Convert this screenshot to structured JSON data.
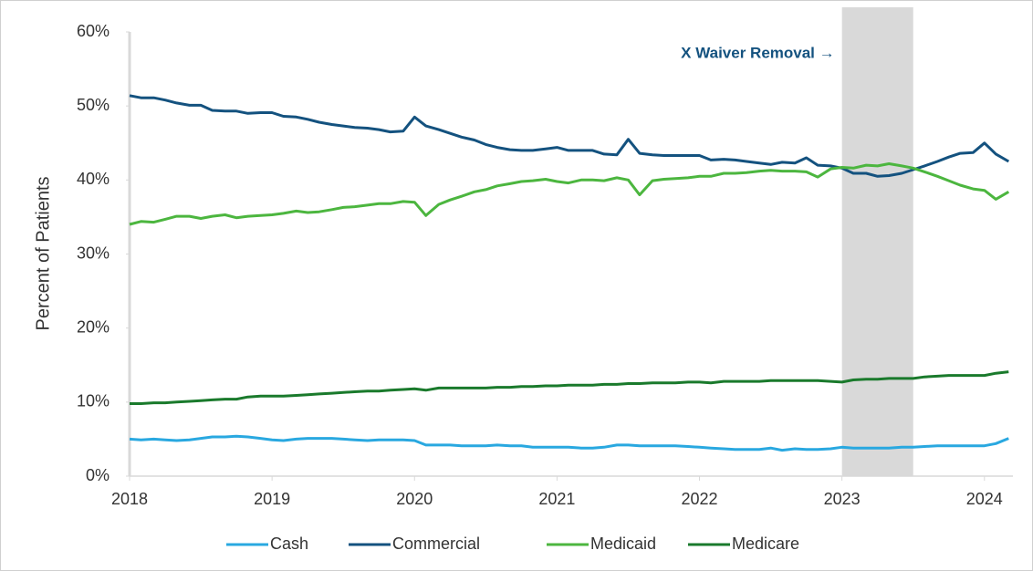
{
  "chart_data": {
    "type": "line",
    "y_axis_label": "Percent of Patients",
    "annotation": "X Waiver Removal →",
    "shaded_region": [
      2023,
      2023.5
    ],
    "xlim": [
      2018,
      2024.2
    ],
    "xticks": [
      2018,
      2019,
      2020,
      2021,
      2022,
      2023,
      2024
    ],
    "ylim": [
      0,
      60
    ],
    "yticks": [
      {
        "value": 0,
        "label": "0%"
      },
      {
        "value": 10,
        "label": "10%"
      },
      {
        "value": 20,
        "label": "20%"
      },
      {
        "value": 30,
        "label": "30%"
      },
      {
        "value": 40,
        "label": "40%"
      },
      {
        "value": 50,
        "label": "50%"
      },
      {
        "value": 60,
        "label": "60%"
      }
    ],
    "legend": "bottom",
    "x": [
      2018,
      2018.08,
      2018.17,
      2018.25,
      2018.33,
      2018.42,
      2018.5,
      2018.58,
      2018.67,
      2018.75,
      2018.83,
      2018.92,
      2019,
      2019.08,
      2019.17,
      2019.25,
      2019.33,
      2019.42,
      2019.5,
      2019.58,
      2019.67,
      2019.75,
      2019.83,
      2019.92,
      2020,
      2020.08,
      2020.17,
      2020.25,
      2020.33,
      2020.42,
      2020.5,
      2020.58,
      2020.67,
      2020.75,
      2020.83,
      2020.92,
      2021,
      2021.08,
      2021.17,
      2021.25,
      2021.33,
      2021.42,
      2021.5,
      2021.58,
      2021.67,
      2021.75,
      2021.83,
      2021.92,
      2022,
      2022.08,
      2022.17,
      2022.25,
      2022.33,
      2022.42,
      2022.5,
      2022.58,
      2022.67,
      2022.75,
      2022.83,
      2022.92,
      2023,
      2023.08,
      2023.17,
      2023.25,
      2023.33,
      2023.42,
      2023.5,
      2023.58,
      2023.67,
      2023.75,
      2023.83,
      2023.92,
      2024,
      2024.08,
      2024.17
    ],
    "series": [
      {
        "name": "Cash",
        "color": "#29a8e0",
        "values": [
          5.0,
          4.9,
          5.0,
          4.9,
          4.8,
          4.9,
          5.1,
          5.3,
          5.3,
          5.4,
          5.3,
          5.1,
          4.9,
          4.8,
          5.0,
          5.1,
          5.1,
          5.1,
          5.0,
          4.9,
          4.8,
          4.9,
          4.9,
          4.9,
          4.8,
          4.2,
          4.2,
          4.2,
          4.1,
          4.1,
          4.1,
          4.2,
          4.1,
          4.1,
          3.9,
          3.9,
          3.9,
          3.9,
          3.8,
          3.8,
          3.9,
          4.2,
          4.2,
          4.1,
          4.1,
          4.1,
          4.1,
          4.0,
          3.9,
          3.8,
          3.7,
          3.6,
          3.6,
          3.6,
          3.8,
          3.5,
          3.7,
          3.6,
          3.6,
          3.7,
          3.9,
          3.8,
          3.8,
          3.8,
          3.8,
          3.9,
          3.9,
          4.0,
          4.1,
          4.1,
          4.1,
          4.1,
          4.1,
          4.4,
          5.1
        ]
      },
      {
        "name": "Commercial",
        "color": "#14527f",
        "values": [
          51.4,
          51.1,
          51.1,
          50.8,
          50.4,
          50.1,
          50.1,
          49.4,
          49.3,
          49.3,
          49.0,
          49.1,
          49.1,
          48.6,
          48.5,
          48.2,
          47.8,
          47.5,
          47.3,
          47.1,
          47.0,
          46.8,
          46.5,
          46.6,
          48.5,
          47.3,
          46.8,
          46.3,
          45.8,
          45.4,
          44.8,
          44.4,
          44.1,
          44.0,
          44.0,
          44.2,
          44.4,
          44.0,
          44.0,
          44.0,
          43.5,
          43.4,
          45.5,
          43.6,
          43.4,
          43.3,
          43.3,
          43.3,
          43.3,
          42.7,
          42.8,
          42.7,
          42.5,
          42.3,
          42.1,
          42.4,
          42.3,
          43.0,
          42.0,
          41.9,
          41.6,
          40.9,
          40.9,
          40.5,
          40.6,
          40.9,
          41.4,
          41.9,
          42.5,
          43.1,
          43.6,
          43.7,
          45.0,
          43.5,
          42.5
        ]
      },
      {
        "name": "Medicaid",
        "color": "#4cb63f",
        "values": [
          34.0,
          34.4,
          34.3,
          34.7,
          35.1,
          35.1,
          34.8,
          35.1,
          35.3,
          34.9,
          35.1,
          35.2,
          35.3,
          35.5,
          35.8,
          35.6,
          35.7,
          36.0,
          36.3,
          36.4,
          36.6,
          36.8,
          36.8,
          37.1,
          37.0,
          35.2,
          36.7,
          37.3,
          37.8,
          38.4,
          38.7,
          39.2,
          39.5,
          39.8,
          39.9,
          40.1,
          39.8,
          39.6,
          40.0,
          40.0,
          39.9,
          40.3,
          40.0,
          38.0,
          39.9,
          40.1,
          40.2,
          40.3,
          40.5,
          40.5,
          40.9,
          40.9,
          41.0,
          41.2,
          41.3,
          41.2,
          41.2,
          41.1,
          40.4,
          41.5,
          41.7,
          41.6,
          42.0,
          41.9,
          42.2,
          41.9,
          41.6,
          41.1,
          40.5,
          39.9,
          39.3,
          38.8,
          38.6,
          37.4,
          38.4
        ]
      },
      {
        "name": "Medicare",
        "color": "#1a7a2c",
        "values": [
          9.8,
          9.8,
          9.9,
          9.9,
          10.0,
          10.1,
          10.2,
          10.3,
          10.4,
          10.4,
          10.7,
          10.8,
          10.8,
          10.8,
          10.9,
          11.0,
          11.1,
          11.2,
          11.3,
          11.4,
          11.5,
          11.5,
          11.6,
          11.7,
          11.8,
          11.6,
          11.9,
          11.9,
          11.9,
          11.9,
          11.9,
          12.0,
          12.0,
          12.1,
          12.1,
          12.2,
          12.2,
          12.3,
          12.3,
          12.3,
          12.4,
          12.4,
          12.5,
          12.5,
          12.6,
          12.6,
          12.6,
          12.7,
          12.7,
          12.6,
          12.8,
          12.8,
          12.8,
          12.8,
          12.9,
          12.9,
          12.9,
          12.9,
          12.9,
          12.8,
          12.7,
          13.0,
          13.1,
          13.1,
          13.2,
          13.2,
          13.2,
          13.4,
          13.5,
          13.6,
          13.6,
          13.6,
          13.6,
          13.9,
          14.1
        ]
      }
    ]
  }
}
